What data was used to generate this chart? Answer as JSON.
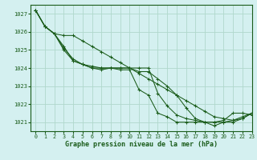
{
  "xlabel": "Graphe pression niveau de la mer (hPa)",
  "xlim": [
    -0.5,
    23
  ],
  "ylim": [
    1020.5,
    1027.5
  ],
  "yticks": [
    1021,
    1022,
    1023,
    1024,
    1025,
    1026,
    1027
  ],
  "xticks": [
    0,
    1,
    2,
    3,
    4,
    5,
    6,
    7,
    8,
    9,
    10,
    11,
    12,
    13,
    14,
    15,
    16,
    17,
    18,
    19,
    20,
    21,
    22,
    23
  ],
  "background_color": "#d4f0f0",
  "plot_bg_color": "#d4f0f0",
  "line_color": "#1a5c1a",
  "grid_color": "#b0d8cc",
  "lines": [
    [
      1027.2,
      1026.3,
      1025.9,
      1025.0,
      1024.4,
      1024.2,
      1024.0,
      1023.9,
      1024.0,
      1023.9,
      1023.9,
      1022.8,
      1022.5,
      1021.5,
      1021.3,
      1021.0,
      1021.0,
      1021.0,
      1021.0,
      1021.0,
      1021.1,
      1021.5,
      1021.5,
      1021.4
    ],
    [
      1027.2,
      1026.3,
      1025.9,
      1025.1,
      1024.5,
      1024.2,
      1024.1,
      1024.0,
      1024.0,
      1024.0,
      1024.0,
      1023.8,
      1023.8,
      1023.4,
      1023.0,
      1022.5,
      1021.8,
      1021.2,
      1021.0,
      1020.8,
      1021.0,
      1021.1,
      1021.2,
      1021.5
    ],
    [
      1027.2,
      1026.3,
      1025.9,
      1025.2,
      1024.4,
      1024.2,
      1024.0,
      1024.0,
      1024.0,
      1024.0,
      1024.0,
      1024.0,
      1024.0,
      1022.6,
      1021.9,
      1021.4,
      1021.2,
      1021.1,
      1021.0,
      1021.0,
      1021.0,
      1021.0,
      1021.2,
      1021.5
    ],
    [
      1027.2,
      1026.3,
      1025.9,
      1025.8,
      1025.8,
      1025.5,
      1025.2,
      1024.9,
      1024.6,
      1024.3,
      1024.0,
      1023.7,
      1023.4,
      1023.1,
      1022.8,
      1022.5,
      1022.2,
      1021.9,
      1021.6,
      1021.3,
      1021.2,
      1021.1,
      1021.3,
      1021.5
    ]
  ]
}
